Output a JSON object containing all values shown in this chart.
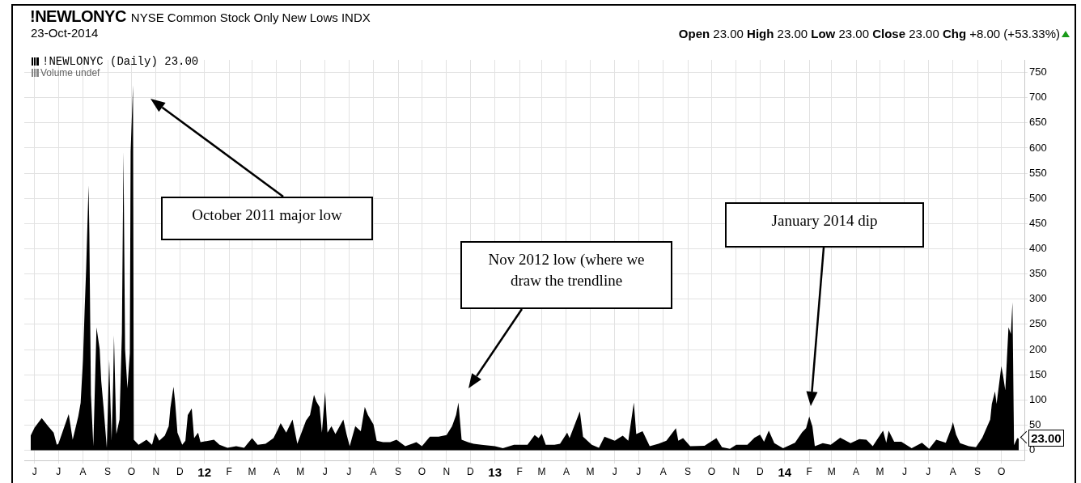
{
  "chart_data": {
    "type": "area",
    "title": "!NEWLONYC",
    "subtitle": "NYSE Common Stock Only New Lows INDX",
    "annotations": [
      "23-Oct-2014",
      "Open 23.00 High 23.00 Low 23.00 Close 23.00 Chg +8.00 (+53.33%)",
      "Volume undef",
      "October 2011 major low",
      "Nov 2012 low (where we draw the trendline",
      "January 2014 dip",
      {
        "text": "23.00",
        "x": "2014-10-23",
        "y": 23
      }
    ],
    "x": [
      "2011-05-27",
      "2011-06-01",
      "2011-06-10",
      "2011-06-18",
      "2011-06-25",
      "2011-06-29",
      "2011-07-01",
      "2011-07-14",
      "2011-07-19",
      "2011-07-26",
      "2011-07-29",
      "2011-08-01",
      "2011-08-03",
      "2011-08-05",
      "2011-08-08",
      "2011-08-09",
      "2011-08-11",
      "2011-08-14",
      "2011-08-18",
      "2011-08-22",
      "2011-08-24",
      "2011-08-27",
      "2011-08-31",
      "2011-09-03",
      "2011-09-06",
      "2011-09-08",
      "2011-09-09",
      "2011-09-12",
      "2011-09-16",
      "2011-09-19",
      "2011-09-21",
      "2011-09-23",
      "2011-09-26",
      "2011-09-29",
      "2011-09-30",
      "2011-10-03",
      "2011-10-04",
      "2011-10-10",
      "2011-10-20",
      "2011-10-27",
      "2011-10-31",
      "2011-11-05",
      "2011-11-12",
      "2011-11-17",
      "2011-11-19",
      "2011-11-23",
      "2011-11-25",
      "2011-11-28",
      "2011-12-04",
      "2011-12-08",
      "2011-12-11",
      "2011-12-16",
      "2011-12-19",
      "2011-12-24",
      "2011-12-27",
      "2012-01-13",
      "2012-01-20",
      "2012-01-30",
      "2012-02-10",
      "2012-02-20",
      "2012-03-01",
      "2012-03-08",
      "2012-03-18",
      "2012-03-28",
      "2012-04-02",
      "2012-04-06",
      "2012-04-13",
      "2012-04-21",
      "2012-04-27",
      "2012-05-08",
      "2012-05-13",
      "2012-05-18",
      "2012-05-21",
      "2012-05-25",
      "2012-05-28",
      "2012-06-01",
      "2012-06-04",
      "2012-06-09",
      "2012-06-14",
      "2012-06-24",
      "2012-06-28",
      "2012-07-02",
      "2012-07-09",
      "2012-07-16",
      "2012-07-21",
      "2012-07-25",
      "2012-08-01",
      "2012-08-05",
      "2012-08-13",
      "2012-08-22",
      "2012-08-30",
      "2012-09-10",
      "2012-09-24",
      "2012-10-01",
      "2012-10-11",
      "2012-10-22",
      "2012-11-01",
      "2012-11-08",
      "2012-11-13",
      "2012-11-16",
      "2012-11-20",
      "2012-11-28",
      "2012-12-05",
      "2012-12-15",
      "2013-01-01",
      "2013-01-11",
      "2013-01-25",
      "2013-02-11",
      "2013-02-20",
      "2013-02-25",
      "2013-03-01",
      "2013-03-06",
      "2013-03-17",
      "2013-03-24",
      "2013-04-02",
      "2013-04-05",
      "2013-04-14",
      "2013-04-18",
      "2013-04-22",
      "2013-05-03",
      "2013-05-12",
      "2013-05-19",
      "2013-06-01",
      "2013-06-11",
      "2013-06-18",
      "2013-06-25",
      "2013-06-28",
      "2013-07-06",
      "2013-07-15",
      "2013-07-26",
      "2013-08-05",
      "2013-08-17",
      "2013-08-20",
      "2013-08-26",
      "2013-09-04",
      "2013-09-22",
      "2013-10-07",
      "2013-10-14",
      "2013-10-24",
      "2013-11-01",
      "2013-11-15",
      "2013-11-24",
      "2013-12-01",
      "2013-12-06",
      "2013-12-12",
      "2013-12-19",
      "2013-12-30",
      "2014-01-14",
      "2014-01-23",
      "2014-01-28",
      "2014-02-01",
      "2014-02-05",
      "2014-02-08",
      "2014-02-18",
      "2014-02-28",
      "2014-03-12",
      "2014-03-25",
      "2014-04-05",
      "2014-04-14",
      "2014-04-22",
      "2014-04-29",
      "2014-05-05",
      "2014-05-09",
      "2014-05-12",
      "2014-05-19",
      "2014-05-28",
      "2014-06-10",
      "2014-06-23",
      "2014-07-02",
      "2014-07-11",
      "2014-07-23",
      "2014-07-30",
      "2014-08-01",
      "2014-08-05",
      "2014-08-10",
      "2014-08-21",
      "2014-08-30",
      "2014-09-07",
      "2014-09-12",
      "2014-09-17",
      "2014-09-19",
      "2014-09-23",
      "2014-09-25",
      "2014-10-01",
      "2014-10-03",
      "2014-10-06",
      "2014-10-08",
      "2014-10-10",
      "2014-10-13",
      "2014-10-15",
      "2014-10-17",
      "2014-10-21",
      "2014-10-23"
    ],
    "series": [
      {
        "name": "!NEWLONYC (Daily) 23.00",
        "color": "#000000",
        "values": [
          29,
          45,
          64,
          48,
          35,
          11,
          13,
          72,
          21,
          67,
          94,
          180,
          276,
          362,
          526,
          429,
          110,
          8,
          244,
          201,
          137,
          83,
          5,
          180,
          19,
          137,
          228,
          32,
          61,
          233,
          593,
          201,
          123,
          193,
          593,
          725,
          21,
          11,
          21,
          11,
          35,
          19,
          29,
          48,
          83,
          126,
          97,
          35,
          11,
          19,
          70,
          83,
          24,
          35,
          16,
          21,
          11,
          5,
          8,
          5,
          24,
          11,
          13,
          24,
          40,
          54,
          35,
          61,
          13,
          59,
          70,
          110,
          97,
          86,
          35,
          116,
          35,
          48,
          32,
          61,
          32,
          8,
          48,
          38,
          86,
          70,
          51,
          19,
          16,
          16,
          21,
          8,
          16,
          8,
          27,
          27,
          30,
          48,
          70,
          95,
          21,
          16,
          13,
          11,
          8,
          4,
          11,
          11,
          30,
          24,
          33,
          11,
          11,
          13,
          35,
          24,
          61,
          77,
          27,
          11,
          5,
          27,
          19,
          29,
          19,
          95,
          32,
          38,
          8,
          13,
          19,
          44,
          19,
          24,
          8,
          9,
          24,
          6,
          3,
          11,
          11,
          25,
          31,
          17,
          39,
          14,
          4,
          15,
          36,
          44,
          67,
          47,
          8,
          14,
          11,
          25,
          14,
          22,
          21,
          8,
          25,
          39,
          15,
          39,
          17,
          17,
          4,
          15,
          3,
          21,
          15,
          44,
          56,
          31,
          14,
          8,
          6,
          25,
          43,
          61,
          92,
          117,
          92,
          167,
          150,
          119,
          181,
          244,
          231,
          294,
          10,
          24,
          23
        ]
      }
    ],
    "xlim": [
      "2011-05-19",
      "2014-10-30"
    ],
    "xticks": [
      {
        "value": "2011-06-01",
        "label": "J"
      },
      {
        "value": "2011-07-01",
        "label": "J"
      },
      {
        "value": "2011-08-01",
        "label": "A"
      },
      {
        "value": "2011-09-01",
        "label": "S"
      },
      {
        "value": "2011-10-01",
        "label": "O"
      },
      {
        "value": "2011-11-01",
        "label": "N"
      },
      {
        "value": "2011-12-01",
        "label": "D"
      },
      {
        "value": "2012-01-01",
        "label": "12"
      },
      {
        "value": "2012-02-01",
        "label": "F"
      },
      {
        "value": "2012-03-01",
        "label": "M"
      },
      {
        "value": "2012-04-01",
        "label": "A"
      },
      {
        "value": "2012-05-01",
        "label": "M"
      },
      {
        "value": "2012-06-01",
        "label": "J"
      },
      {
        "value": "2012-07-01",
        "label": "J"
      },
      {
        "value": "2012-08-01",
        "label": "A"
      },
      {
        "value": "2012-09-01",
        "label": "S"
      },
      {
        "value": "2012-10-01",
        "label": "O"
      },
      {
        "value": "2012-11-01",
        "label": "N"
      },
      {
        "value": "2012-12-01",
        "label": "D"
      },
      {
        "value": "2013-01-01",
        "label": "13"
      },
      {
        "value": "2013-02-01",
        "label": "F"
      },
      {
        "value": "2013-03-01",
        "label": "M"
      },
      {
        "value": "2013-04-01",
        "label": "A"
      },
      {
        "value": "2013-05-01",
        "label": "M"
      },
      {
        "value": "2013-06-01",
        "label": "J"
      },
      {
        "value": "2013-07-01",
        "label": "J"
      },
      {
        "value": "2013-08-01",
        "label": "A"
      },
      {
        "value": "2013-09-01",
        "label": "S"
      },
      {
        "value": "2013-10-01",
        "label": "O"
      },
      {
        "value": "2013-11-01",
        "label": "N"
      },
      {
        "value": "2013-12-01",
        "label": "D"
      },
      {
        "value": "2014-01-01",
        "label": "14"
      },
      {
        "value": "2014-02-01",
        "label": "F"
      },
      {
        "value": "2014-03-01",
        "label": "M"
      },
      {
        "value": "2014-04-01",
        "label": "A"
      },
      {
        "value": "2014-05-01",
        "label": "M"
      },
      {
        "value": "2014-06-01",
        "label": "J"
      },
      {
        "value": "2014-07-01",
        "label": "J"
      },
      {
        "value": "2014-08-01",
        "label": "A"
      },
      {
        "value": "2014-09-01",
        "label": "S"
      },
      {
        "value": "2014-10-01",
        "label": "O"
      }
    ],
    "ylim": [
      -20,
      775
    ],
    "yticks": [
      0,
      50,
      100,
      150,
      200,
      250,
      300,
      350,
      400,
      450,
      500,
      550,
      600,
      650,
      700,
      750
    ],
    "grid": true,
    "legend": "top left"
  }
}
